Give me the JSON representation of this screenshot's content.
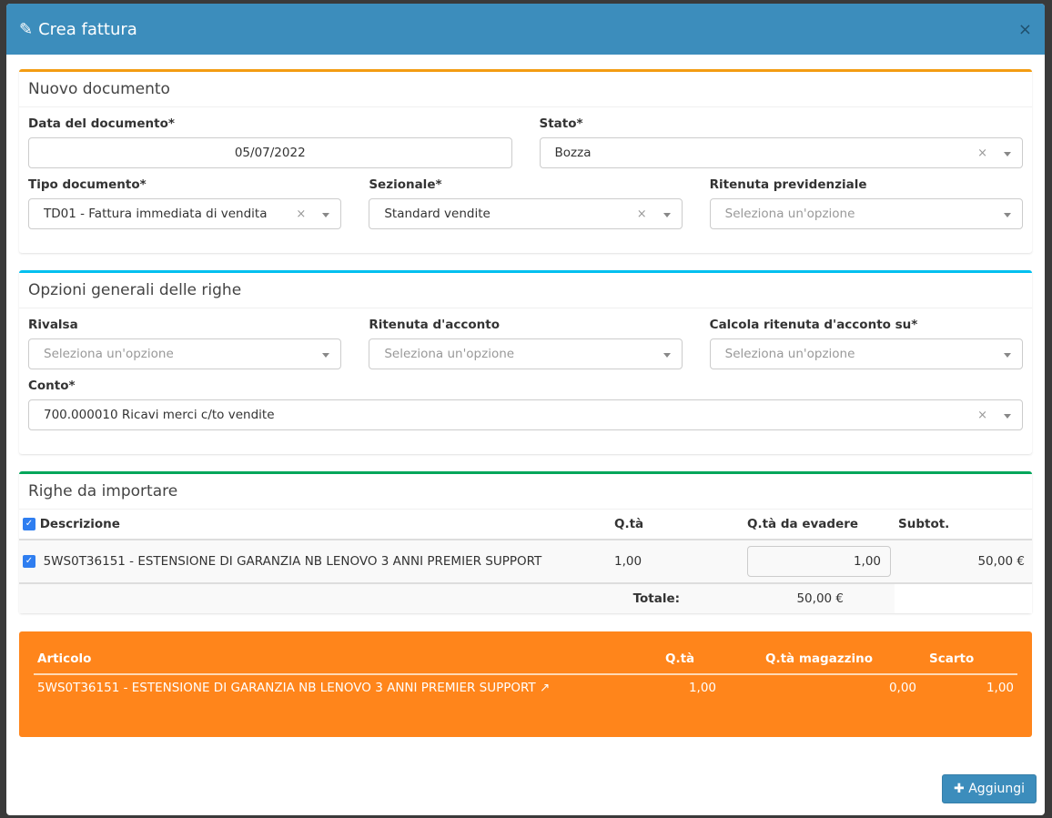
{
  "modal": {
    "title": "Crea fattura",
    "close": "×"
  },
  "doc": {
    "title": "Nuovo documento",
    "data_label": "Data del documento*",
    "data_value": "05/07/2022",
    "stato_label": "Stato*",
    "stato_value": "Bozza",
    "tipo_label": "Tipo documento*",
    "tipo_value": "TD01 - Fattura immediata di vendita",
    "sez_label": "Sezionale*",
    "sez_value": "Standard vendite",
    "rit_label": "Ritenuta previdenziale",
    "rit_placeholder": "Seleziona un'opzione"
  },
  "opts": {
    "title": "Opzioni generali delle righe",
    "rivalsa_label": "Rivalsa",
    "rivalsa_placeholder": "Seleziona un'opzione",
    "ritacc_label": "Ritenuta d'acconto",
    "ritacc_placeholder": "Seleziona un'opzione",
    "calc_label": "Calcola ritenuta d'acconto su*",
    "calc_placeholder": "Seleziona un'opzione",
    "conto_label": "Conto*",
    "conto_value": "700.000010 Ricavi merci c/to vendite"
  },
  "righe": {
    "title": "Righe da importare",
    "headers": [
      "Descrizione",
      "Q.tà",
      "Q.tà da evadere",
      "Subtot."
    ],
    "rows": [
      {
        "desc": "5WS0T36151 - ESTENSIONE DI GARANZIA NB LENOVO 3 ANNI PREMIER SUPPORT",
        "qta": "1,00",
        "evadere": "1,00",
        "subtot": "50,00 €"
      }
    ],
    "totale_label": "Totale:",
    "totale_value": "50,00 €"
  },
  "warning": {
    "headers": [
      "Articolo",
      "Q.tà",
      "Q.tà magazzino",
      "Scarto"
    ],
    "rows": [
      {
        "articolo": "5WS0T36151 - ESTENSIONE DI GARANZIA NB LENOVO 3 ANNI PREMIER SUPPORT",
        "qta": "1,00",
        "magazzino": "0,00",
        "scarto": "1,00"
      }
    ]
  },
  "footer": {
    "add_label": "Aggiungi"
  },
  "colors": {
    "header": "#3c8dbc",
    "warning": "#ff851b",
    "checkbox": "#2f7ef0"
  }
}
